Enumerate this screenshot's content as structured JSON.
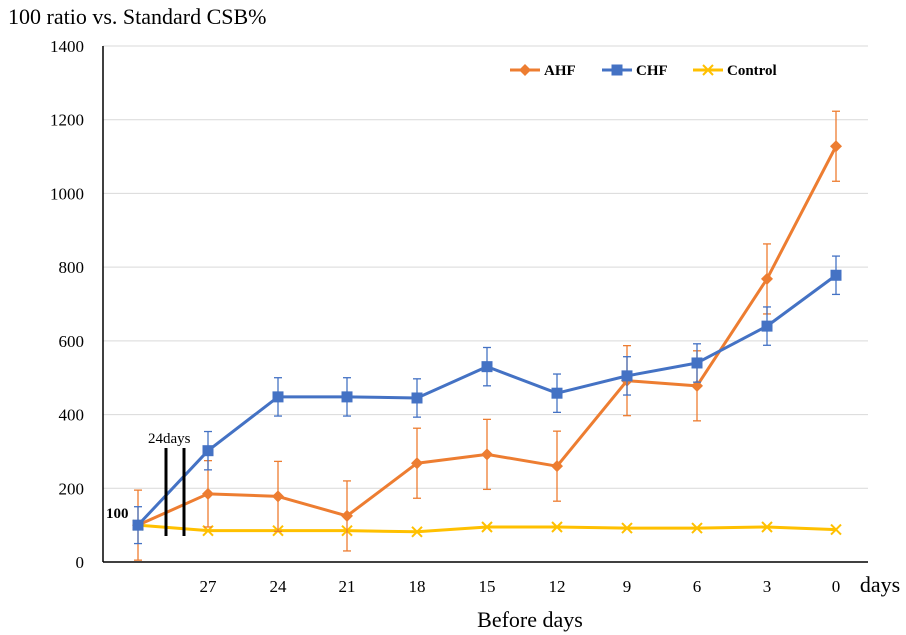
{
  "chart_data": {
    "type": "line",
    "title": "",
    "ylabel": "100 ratio vs. Standard CSB%",
    "xlabel": "Before days",
    "x_unit_label": "days",
    "ylim": [
      0,
      1400
    ],
    "yticks": [
      0,
      200,
      400,
      600,
      800,
      1000,
      1200,
      1400
    ],
    "categories": [
      "",
      "27",
      "24",
      "21",
      "18",
      "15",
      "12",
      "9",
      "6",
      "3",
      "0"
    ],
    "grid": true,
    "legend_position": "top-right",
    "annotations": {
      "start_value": "100",
      "gap_label": "24days"
    },
    "series": [
      {
        "name": "AHF",
        "color": "#ED7D31",
        "marker": "diamond",
        "values": [
          100,
          185,
          178,
          125,
          268,
          292,
          260,
          492,
          478,
          768,
          1128
        ],
        "errors": [
          95,
          90,
          95,
          95,
          95,
          95,
          95,
          95,
          95,
          95,
          95
        ]
      },
      {
        "name": "CHF",
        "color": "#4472C4",
        "marker": "square",
        "values": [
          100,
          302,
          448,
          448,
          445,
          530,
          458,
          505,
          540,
          640,
          778
        ],
        "errors": [
          50,
          52,
          52,
          52,
          52,
          52,
          52,
          52,
          52,
          52,
          52
        ]
      },
      {
        "name": "Control",
        "color": "#FFC000",
        "marker": "x",
        "values": [
          100,
          85,
          85,
          85,
          82,
          95,
          95,
          92,
          92,
          95,
          88
        ],
        "errors": [
          0,
          0,
          0,
          0,
          0,
          0,
          0,
          0,
          0,
          0,
          0
        ]
      }
    ]
  }
}
